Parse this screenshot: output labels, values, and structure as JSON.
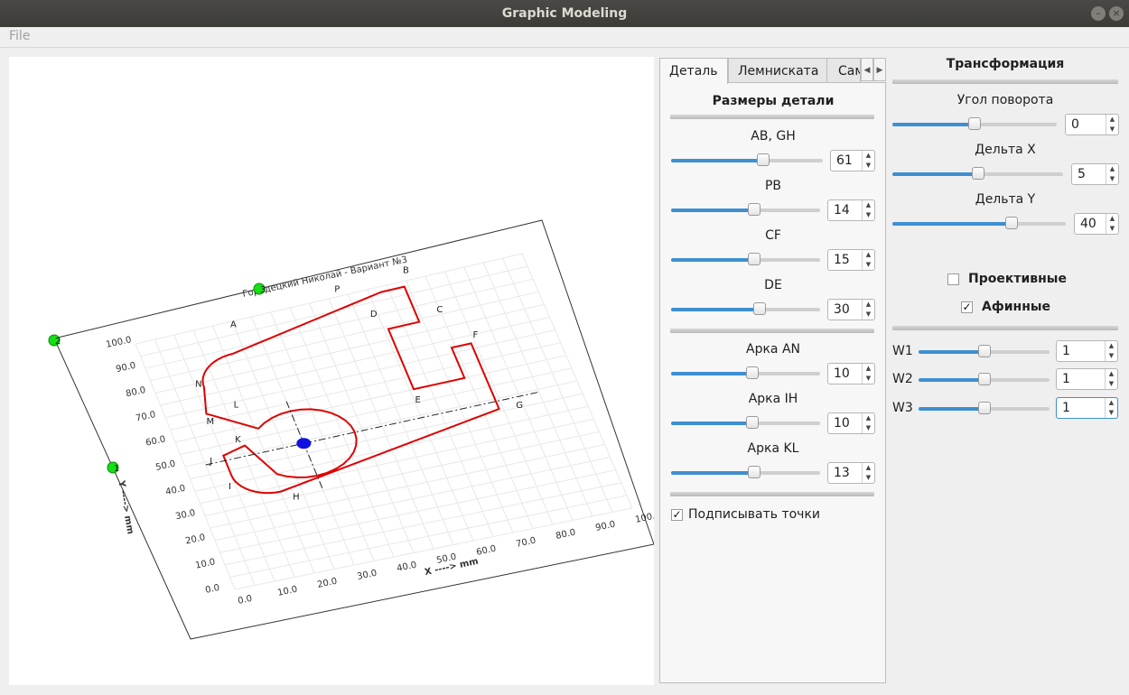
{
  "window": {
    "title": "Graphic Modeling"
  },
  "menu": {
    "file": "File"
  },
  "tabs": [
    {
      "label": "Деталь",
      "active": true
    },
    {
      "label": "Лемниската",
      "active": false
    },
    {
      "label": "Сам",
      "active": false
    }
  ],
  "detail": {
    "title": "Размеры детали",
    "sliders": [
      {
        "label": "AB, GH",
        "value": "61",
        "fraction": 0.62
      },
      {
        "label": "PB",
        "value": "14",
        "fraction": 0.56
      },
      {
        "label": "CF",
        "value": "15",
        "fraction": 0.56
      },
      {
        "label": "DE",
        "value": "30",
        "fraction": 0.6
      }
    ],
    "arcs": [
      {
        "label": "Арка AN",
        "value": "10",
        "fraction": 0.55
      },
      {
        "label": "Арка IH",
        "value": "10",
        "fraction": 0.55
      },
      {
        "label": "Арка KL",
        "value": "13",
        "fraction": 0.56
      }
    ],
    "label_points": {
      "label": "Подписывать точки",
      "checked": true
    }
  },
  "transform": {
    "title": "Трансформация",
    "rotation": {
      "label": "Угол поворота",
      "value": "0",
      "fraction": 0.5
    },
    "delta_x": {
      "label": "Дельта X",
      "value": "5",
      "fraction": 0.5
    },
    "delta_y": {
      "label": "Дельта  Y",
      "value": "40",
      "fraction": 0.7
    },
    "projective": {
      "label": "Проективные",
      "checked": false
    },
    "affine": {
      "label": "Афинные",
      "checked": true
    },
    "weights": [
      {
        "label": "W1",
        "value": "1",
        "fraction": 0.5
      },
      {
        "label": "W2",
        "value": "1",
        "fraction": 0.5
      },
      {
        "label": "W3",
        "value": "1",
        "fraction": 0.5
      }
    ]
  },
  "plot": {
    "heading": "Городецкий Николай - Вариант №3",
    "x_axis_label": "X ----> mm",
    "y_axis_label": "Y ----> mm",
    "ticks": [
      "0.0",
      "10.0",
      "20.0",
      "30.0",
      "40.0",
      "50.0",
      "60.0",
      "70.0",
      "80.0",
      "90.0",
      "100.0"
    ],
    "control_points": [
      "1",
      "2",
      "3"
    ],
    "point_labels": [
      "A",
      "B",
      "C",
      "D",
      "E",
      "F",
      "G",
      "H",
      "I",
      "J",
      "K",
      "L",
      "M",
      "N",
      "P"
    ],
    "colors": {
      "outline": "#e00000",
      "control": "#16e016",
      "center": "#1010e0",
      "grid": "#e8e8e8"
    }
  }
}
